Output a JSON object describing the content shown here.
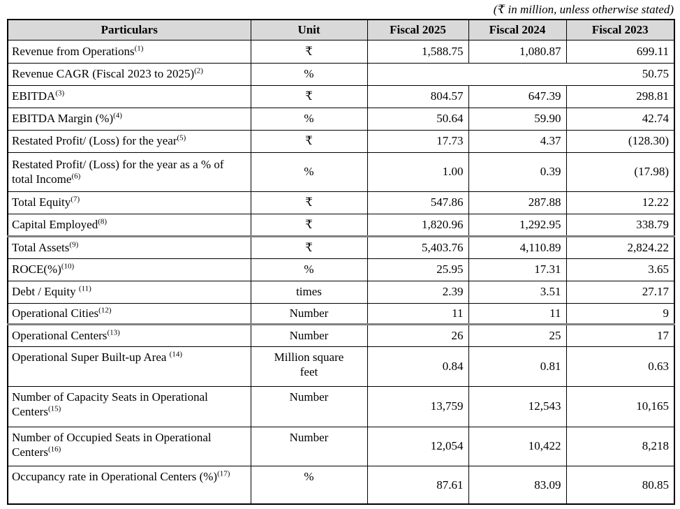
{
  "note": "(₹ in million, unless otherwise stated)",
  "table": {
    "columns": [
      "Particulars",
      "Unit",
      "Fiscal 2025",
      "Fiscal 2024",
      "Fiscal 2023"
    ],
    "rows": [
      {
        "label": "Revenue from Operations",
        "sup": "(1)",
        "unit": "₹",
        "values": [
          "1,588.75",
          "1,080.87",
          "699.11"
        ]
      },
      {
        "label": "Revenue CAGR (Fiscal 2023 to 2025)",
        "sup": "(2)",
        "unit": "%",
        "merged_value": "50.75"
      },
      {
        "label": "EBITDA",
        "sup": "(3)",
        "unit": "₹",
        "values": [
          "804.57",
          "647.39",
          "298.81"
        ]
      },
      {
        "label": "EBITDA Margin (%)",
        "sup": "(4)",
        "unit": "%",
        "values": [
          "50.64",
          "59.90",
          "42.74"
        ]
      },
      {
        "label": "Restated Profit/ (Loss) for the year",
        "sup": "(5)",
        "unit": "₹",
        "values": [
          "17.73",
          "4.37",
          "(128.30)"
        ]
      },
      {
        "label": "Restated Profit/ (Loss) for the year as a % of total Income",
        "sup": "(6)",
        "unit": "%",
        "values": [
          "1.00",
          "0.39",
          "(17.98)"
        ]
      },
      {
        "label": "Total Equity",
        "sup": "(7)",
        "unit": "₹",
        "values": [
          "547.86",
          "287.88",
          "12.22"
        ]
      },
      {
        "label": "Capital Employed",
        "sup": "(8)",
        "unit": "₹",
        "values": [
          "1,820.96",
          "1,292.95",
          "338.79"
        ]
      },
      {
        "label": "Total Assets",
        "sup": "(9)",
        "unit": "₹",
        "values": [
          "5,403.76",
          "4,110.89",
          "2,824.22"
        ],
        "thick_top": true
      },
      {
        "label": "ROCE(%)",
        "sup": "(10)",
        "unit": "%",
        "values": [
          "25.95",
          "17.31",
          "3.65"
        ]
      },
      {
        "label": "Debt / Equity ",
        "sup": "(11)",
        "unit": "times",
        "values": [
          "2.39",
          "3.51",
          "27.17"
        ]
      },
      {
        "label": "Operational Cities",
        "sup": "(12)",
        "unit": "Number",
        "values": [
          "11",
          "11",
          "9"
        ]
      },
      {
        "label": "Operational Centers",
        "sup": "(13)",
        "unit": "Number",
        "values": [
          "26",
          "25",
          "17"
        ],
        "thick_top": true
      },
      {
        "label": "Operational Super Built-up Area ",
        "sup": "(14)",
        "unit": "Million square\nfeet",
        "values": [
          "0.84",
          "0.81",
          "0.63"
        ],
        "va_top": true
      },
      {
        "label": "Number of Capacity Seats in Operational Centers",
        "sup": "(15)",
        "unit": "Number",
        "values": [
          "13,759",
          "12,543",
          "10,165"
        ],
        "va_top": true
      },
      {
        "label": "Number of Occupied Seats in Operational Centers",
        "sup": "(16)",
        "unit": "Number",
        "values": [
          "12,054",
          "10,422",
          "8,218"
        ],
        "va_top": true
      },
      {
        "label": "Occupancy rate in Operational Centers (%)",
        "sup": "(17)",
        "unit": "%",
        "values": [
          "87.61",
          "83.09",
          "80.85"
        ],
        "va_top": true
      }
    ]
  }
}
